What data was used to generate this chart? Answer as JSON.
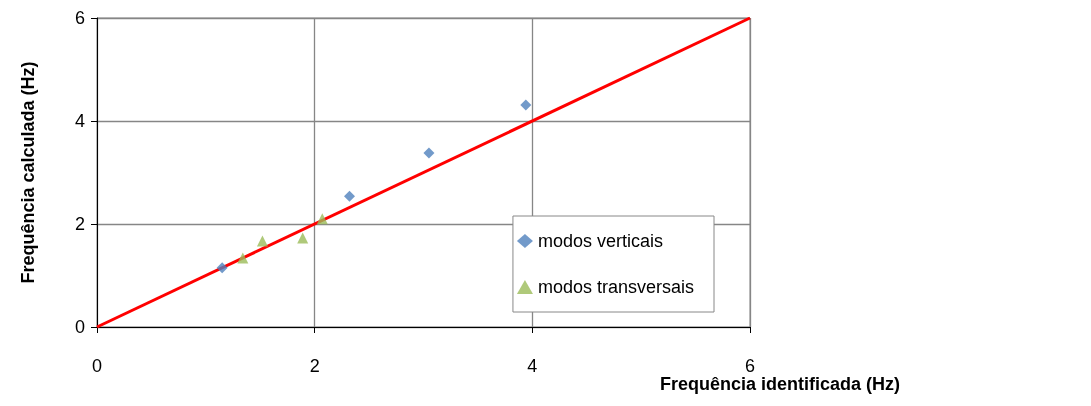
{
  "chart_data": {
    "type": "scatter",
    "xlabel": "Frequência identificada (Hz)",
    "ylabel": "Frequência calculada (Hz)",
    "xlim": [
      0,
      6
    ],
    "xticks": [
      0,
      2,
      4,
      6
    ],
    "ylim": [
      0,
      6
    ],
    "yticks": [
      0,
      2,
      4,
      6
    ],
    "grid": true,
    "legend": "bottom right",
    "series": [
      {
        "name": "modos verticais",
        "color": "#4f81bd",
        "marker": "diamond",
        "x": [
          1.15,
          2.32,
          3.05,
          3.94
        ],
        "values": [
          1.15,
          2.54,
          3.38,
          4.31
        ]
      },
      {
        "name": "modos transversais",
        "color": "#9bbb59",
        "marker": "triangle",
        "x": [
          1.34,
          1.52,
          1.89,
          2.07
        ],
        "values": [
          1.34,
          1.67,
          1.73,
          2.1
        ]
      },
      {
        "type": "line",
        "color": "#ff0000",
        "marker": "none",
        "line_style": "solid",
        "x": [
          0,
          6
        ],
        "values": [
          0,
          6
        ]
      }
    ]
  }
}
